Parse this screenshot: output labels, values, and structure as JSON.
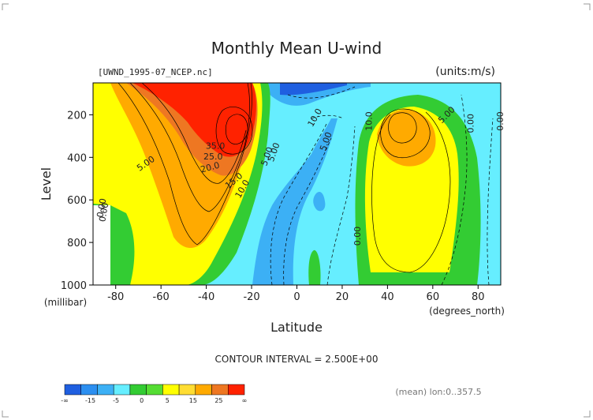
{
  "chart_data": {
    "type": "contour",
    "title": "Monthly Mean U-wind",
    "source_label": "[UWND_1995-07_NCEP.nc]",
    "units_label": "(units:m/s)",
    "ylabel": "Level",
    "ylabel_unit": "(millibar)",
    "xlabel": "Latitude",
    "xlabel_unit": "(degrees_north)",
    "xlim": [
      -90,
      90
    ],
    "ylim": [
      1000,
      50
    ],
    "x_ticks": [
      "-80",
      "-60",
      "-40",
      "-20",
      "0",
      "20",
      "40",
      "60",
      "80"
    ],
    "y_ticks": [
      "200",
      "400",
      "600",
      "800",
      "1000"
    ],
    "contour_interval_text": "CONTOUR INTERVAL = 2.500E+00",
    "footer_text": "(mean) lon:0..357.5",
    "contour_labels": [
      "35.0",
      "25.0",
      "20.0",
      "15.0",
      "10.0",
      "5.00",
      "5.00",
      "5.00",
      "0.00",
      "10.0",
      "5.00",
      "10.0",
      "5.00",
      "0.00",
      "0.00",
      "0.00",
      "0.00"
    ],
    "colorbar": {
      "labels": [
        "-∞",
        "-15",
        "-5",
        "0",
        "5",
        "15",
        "25",
        "∞"
      ],
      "colors": [
        "#1f5fe0",
        "#2c8ff0",
        "#3cb0f5",
        "#66eeff",
        "#33cc33",
        "#55dd33",
        "#ffff00",
        "#ffdd33",
        "#ffaa00",
        "#ee7722",
        "#ff2200"
      ]
    }
  }
}
